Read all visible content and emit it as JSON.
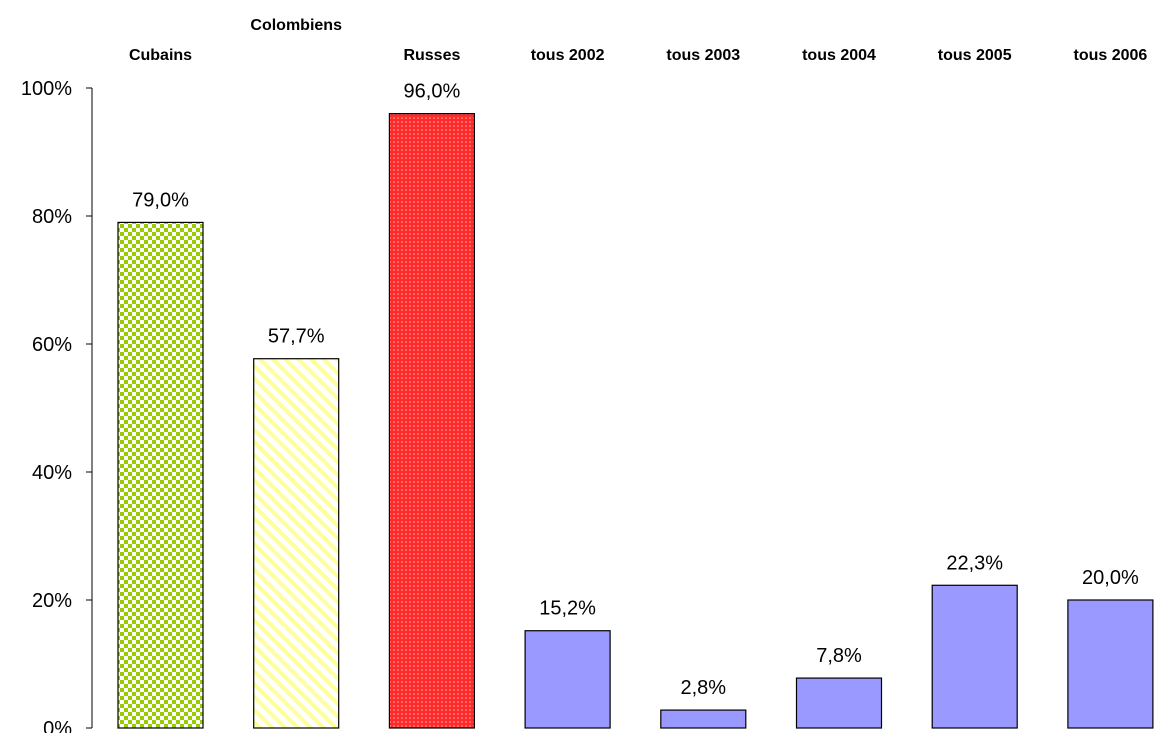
{
  "chart_data": {
    "type": "bar",
    "categories": [
      "Cubains",
      "Colombiens",
      "Russes",
      "tous 2002",
      "tous 2003",
      "tous 2004",
      "tous 2005",
      "tous 2006"
    ],
    "values": [
      79.0,
      57.7,
      96.0,
      15.2,
      2.8,
      7.8,
      22.3,
      20.0
    ],
    "value_labels": [
      "79,0%",
      "57,7%",
      "96,0%",
      "15,2%",
      "2,8%",
      "7,8%",
      "22,3%",
      "20,0%"
    ],
    "bar_fills": [
      "green-checker",
      "yellow-diagonal",
      "red-dotted",
      "solid",
      "solid",
      "solid",
      "solid",
      "solid"
    ],
    "colors": {
      "green_checker": "#99cc00",
      "yellow_diagonal": "#ffff99",
      "red_dotted": "#ff2a2a",
      "solid": "#9999ff"
    },
    "y_ticks": [
      "0%",
      "20%",
      "40%",
      "60%",
      "80%",
      "100%"
    ],
    "ylim": [
      0,
      100
    ],
    "title": "",
    "xlabel": "",
    "ylabel": "",
    "grid": false,
    "legend": "none"
  }
}
